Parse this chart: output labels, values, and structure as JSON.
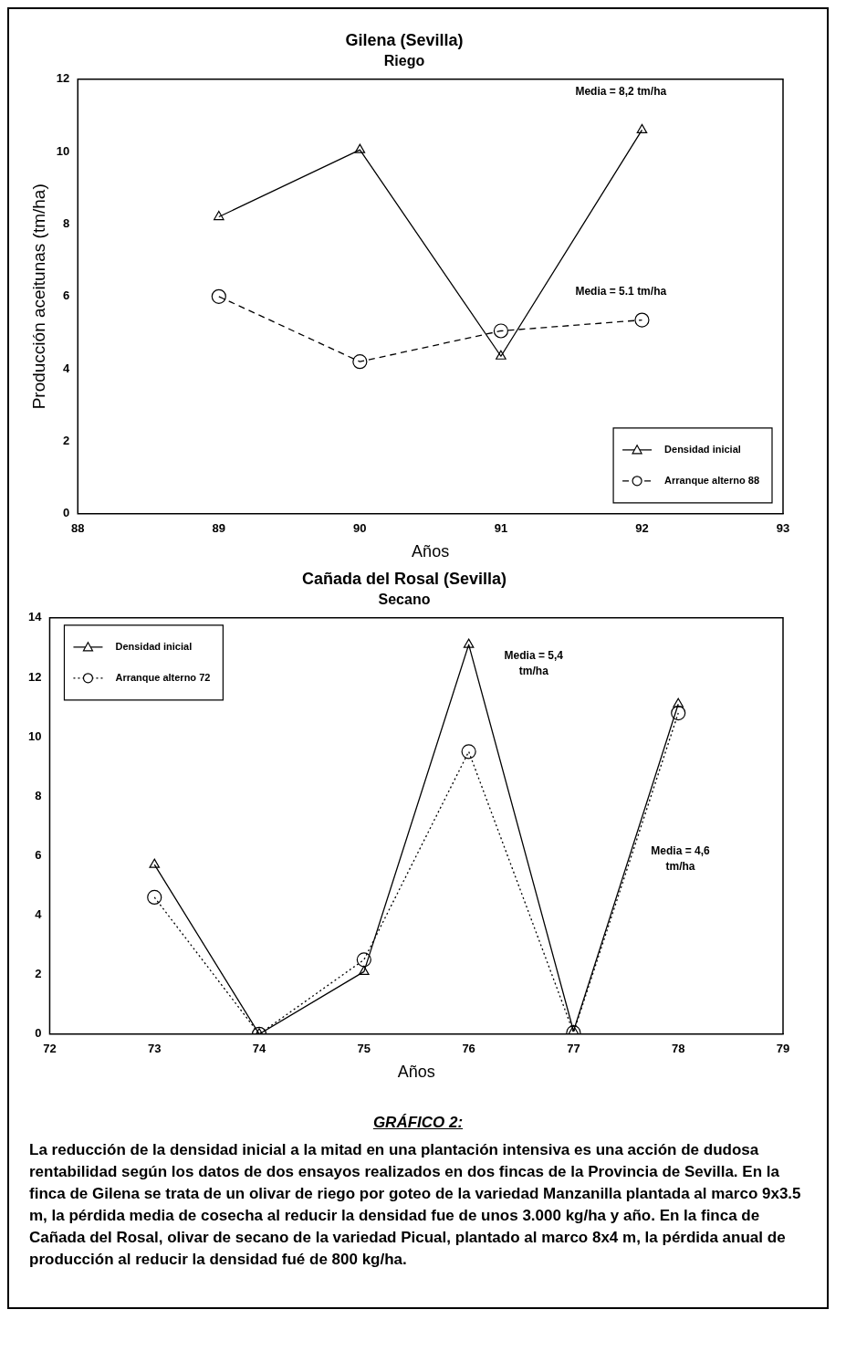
{
  "chart_data": [
    {
      "type": "line",
      "title": "Gilena (Sevilla)",
      "subtitle": "Riego",
      "xlabel": "Años",
      "ylabel": "Producción aceitunas (tm/ha)",
      "x": [
        89,
        90,
        91,
        92
      ],
      "xlim": [
        88,
        93
      ],
      "xticks": [
        88,
        89,
        90,
        91,
        92,
        93
      ],
      "ylim": [
        0,
        12
      ],
      "yticks": [
        0,
        2,
        4,
        6,
        8,
        10,
        12
      ],
      "grid": false,
      "legend": "bottom right",
      "series": [
        {
          "name": "Densidad inicial",
          "color": "#000000",
          "marker": "triangle",
          "line_style": "solid",
          "values": [
            8.2,
            10.05,
            4.35,
            10.6
          ]
        },
        {
          "name": "Arranque alterno 88",
          "color": "#000000",
          "marker": "circle",
          "line_style": "dashed",
          "values": [
            6.0,
            4.2,
            5.05,
            5.35
          ]
        }
      ],
      "annotations": [
        "Media = 8,2 tm/ha",
        "Media = 5.1 tm/ha"
      ]
    },
    {
      "type": "line",
      "title": "Cañada del Rosal (Sevilla)",
      "subtitle": "Secano",
      "xlabel": "Años",
      "x": [
        73,
        74,
        75,
        76,
        77,
        78
      ],
      "xlim": [
        72,
        79
      ],
      "xticks": [
        72,
        73,
        74,
        75,
        76,
        77,
        78,
        79
      ],
      "ylim": [
        0,
        14
      ],
      "yticks": [
        0,
        2,
        4,
        6,
        8,
        10,
        12,
        14
      ],
      "grid": false,
      "legend": "top left",
      "series": [
        {
          "name": "Densidad inicial",
          "color": "#000000",
          "marker": "triangle",
          "line_style": "solid",
          "values": [
            5.7,
            0,
            2.1,
            13.1,
            0.1,
            11.1
          ]
        },
        {
          "name": "Arranque alterno 72",
          "color": "#000000",
          "marker": "circle",
          "line_style": "dotted",
          "values": [
            4.6,
            0,
            2.5,
            9.5,
            0.05,
            10.8
          ]
        }
      ],
      "annotations": [
        "Media = 5,4 tm/ha",
        "Media = 4,6 tm/ha",
        "GRÁFICO 2:",
        "La reducción de la densidad inicial a la mitad en una plantación intensiva es una acción de dudosa rentabilidad según los datos de dos ensayos realizados en dos fincas de la Provincia de Sevilla. En la finca de Gilena se trata de un olivar de riego por goteo de la variedad Manzanilla plantada al marco 9x3.5 m, la pérdida media de cosecha al reducir la densidad fue de unos 3.000 kg/ha y año. En la finca de Cañada del Rosal, olivar de secano de la variedad Picual, plantado al marco 8x4 m, la pérdida anual de producción al reducir la densidad fué de 800 kg/ha."
      ]
    }
  ]
}
